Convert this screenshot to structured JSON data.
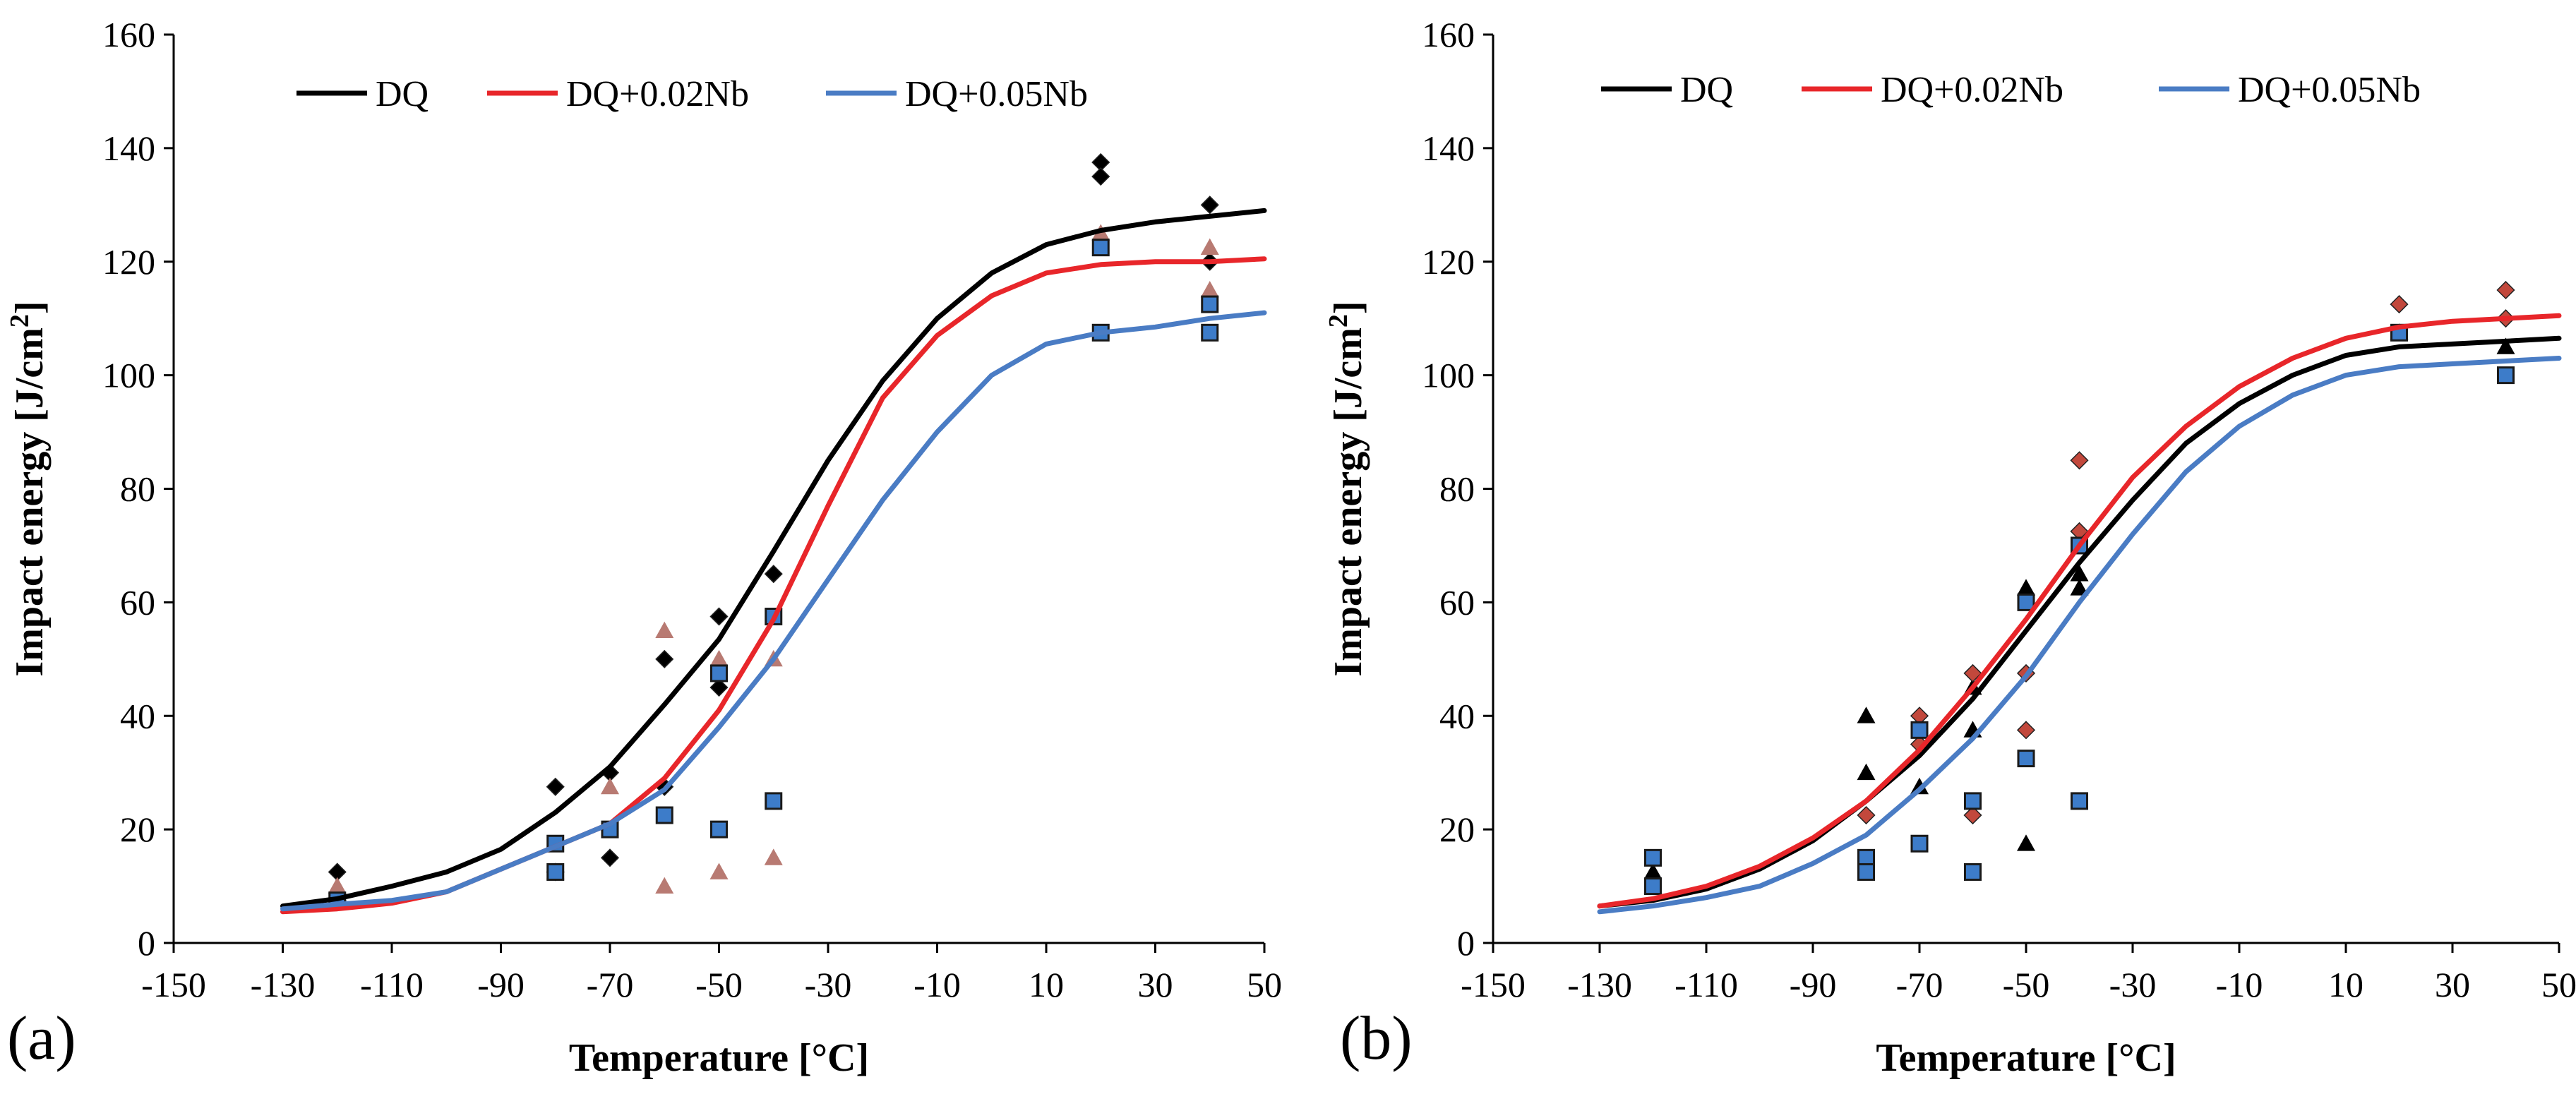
{
  "chart_data": [
    {
      "type": "line",
      "panel_label": "(a)",
      "xlabel": "Temperature [°C]",
      "ylabel_main": "Impact energy [J/cm",
      "ylabel_sup": "2",
      "ylabel_end": "]",
      "xlim": [
        -150,
        50
      ],
      "ylim": [
        0,
        160
      ],
      "xticks": [
        -150,
        -130,
        -110,
        -90,
        -70,
        -50,
        -30,
        -10,
        10,
        30,
        50
      ],
      "xtick_labels": [
        "-150",
        "-130",
        "-110",
        "-90",
        "-70",
        "-50",
        "-30",
        "-10",
        "10",
        "30",
        "50"
      ],
      "yticks": [
        0,
        20,
        40,
        60,
        80,
        100,
        120,
        140,
        160
      ],
      "ytick_labels": [
        "0",
        "20",
        "40",
        "60",
        "80",
        "100",
        "120",
        "140",
        "160"
      ],
      "grid": false,
      "legend_position": "top",
      "series": [
        {
          "name": "DQ",
          "color": "#000000",
          "marker": "diamond",
          "marker_color": "#000000",
          "curve": {
            "x": [
              -130,
              -120,
              -110,
              -100,
              -90,
              -80,
              -70,
              -60,
              -50,
              -40,
              -30,
              -20,
              -10,
              0,
              10,
              20,
              30,
              40,
              50
            ],
            "y": [
              6.5,
              7.8,
              10.0,
              12.5,
              16.5,
              23,
              31,
              42,
              53.5,
              69,
              85,
              99,
              110,
              118,
              123,
              125.5,
              127,
              128,
              129
            ]
          },
          "points": [
            {
              "x": -120,
              "y": 12.5
            },
            {
              "x": -120,
              "y": 7.5
            },
            {
              "x": -80,
              "y": 27.5
            },
            {
              "x": -80,
              "y": 12.5
            },
            {
              "x": -70,
              "y": 30
            },
            {
              "x": -70,
              "y": 15
            },
            {
              "x": -60,
              "y": 50
            },
            {
              "x": -60,
              "y": 27.5
            },
            {
              "x": -50,
              "y": 57.5
            },
            {
              "x": -50,
              "y": 45
            },
            {
              "x": -40,
              "y": 65
            },
            {
              "x": 20,
              "y": 137.5
            },
            {
              "x": 20,
              "y": 135
            },
            {
              "x": 40,
              "y": 130
            },
            {
              "x": 40,
              "y": 120
            }
          ]
        },
        {
          "name": "DQ+0.02Nb",
          "color": "#e8262a",
          "marker": "triangle",
          "marker_color": "#b87a72",
          "curve": {
            "x": [
              -130,
              -120,
              -110,
              -100,
              -90,
              -80,
              -70,
              -60,
              -50,
              -40,
              -30,
              -20,
              -10,
              0,
              10,
              20,
              30,
              40,
              50
            ],
            "y": [
              5.5,
              6.0,
              7.0,
              9.0,
              13,
              17,
              21,
              29,
              41,
              57,
              77,
              96,
              107,
              114,
              118,
              119.5,
              120,
              120,
              120.5
            ]
          },
          "points": [
            {
              "x": -120,
              "y": 10
            },
            {
              "x": -80,
              "y": 12.5
            },
            {
              "x": -70,
              "y": 27.5
            },
            {
              "x": -60,
              "y": 55
            },
            {
              "x": -60,
              "y": 10
            },
            {
              "x": -50,
              "y": 50
            },
            {
              "x": -50,
              "y": 12.5
            },
            {
              "x": -40,
              "y": 50
            },
            {
              "x": -40,
              "y": 15
            },
            {
              "x": 20,
              "y": 125
            },
            {
              "x": 40,
              "y": 122.5
            },
            {
              "x": 40,
              "y": 115
            }
          ]
        },
        {
          "name": "DQ+0.05Nb",
          "color": "#4a7cc4",
          "marker": "square",
          "marker_color": "#3d7cc9",
          "curve": {
            "x": [
              -130,
              -120,
              -110,
              -100,
              -90,
              -80,
              -70,
              -60,
              -50,
              -40,
              -30,
              -20,
              -10,
              0,
              10,
              20,
              30,
              40,
              50
            ],
            "y": [
              6.0,
              6.8,
              7.5,
              9.0,
              13,
              17,
              21,
              27,
              38,
              50,
              64,
              78,
              90,
              100,
              105.5,
              107.5,
              108.5,
              110,
              111
            ]
          },
          "points": [
            {
              "x": -120,
              "y": 7.5
            },
            {
              "x": -80,
              "y": 17.5
            },
            {
              "x": -80,
              "y": 12.5
            },
            {
              "x": -70,
              "y": 20
            },
            {
              "x": -60,
              "y": 22.5
            },
            {
              "x": -50,
              "y": 47.5
            },
            {
              "x": -50,
              "y": 20
            },
            {
              "x": -40,
              "y": 57.5
            },
            {
              "x": -40,
              "y": 25
            },
            {
              "x": 20,
              "y": 122.5
            },
            {
              "x": 20,
              "y": 107.5
            },
            {
              "x": 40,
              "y": 112.5
            },
            {
              "x": 40,
              "y": 107.5
            }
          ]
        }
      ]
    },
    {
      "type": "line",
      "panel_label": "(b)",
      "xlabel": "Temperature [°C]",
      "ylabel_main": "Impact energy [J/cm",
      "ylabel_sup": "2",
      "ylabel_end": "]",
      "xlim": [
        -150,
        50
      ],
      "ylim": [
        0,
        160
      ],
      "xticks": [
        -150,
        -130,
        -110,
        -90,
        -70,
        -50,
        -30,
        -10,
        10,
        30,
        50
      ],
      "xtick_labels": [
        "-150",
        "-130",
        "-110",
        "-90",
        "-70",
        "-50",
        "-30",
        "-10",
        "10",
        "30",
        "50"
      ],
      "yticks": [
        0,
        20,
        40,
        60,
        80,
        100,
        120,
        140,
        160
      ],
      "ytick_labels": [
        "0",
        "20",
        "40",
        "60",
        "80",
        "100",
        "120",
        "140",
        "160"
      ],
      "grid": false,
      "legend_position": "top",
      "series": [
        {
          "name": "DQ",
          "color": "#000000",
          "marker": "triangle",
          "marker_color": "#000000",
          "curve": {
            "x": [
              -130,
              -120,
              -110,
              -100,
              -90,
              -80,
              -70,
              -60,
              -50,
              -40,
              -30,
              -20,
              -10,
              0,
              10,
              20,
              30,
              40,
              50
            ],
            "y": [
              6.5,
              7.5,
              9.5,
              13,
              18,
              25,
              33,
              43,
              55,
              67,
              78,
              88,
              95,
              100,
              103.5,
              105,
              105.5,
              106,
              106.5
            ]
          },
          "points": [
            {
              "x": -120,
              "y": 12.5
            },
            {
              "x": -120,
              "y": 10
            },
            {
              "x": -80,
              "y": 40
            },
            {
              "x": -80,
              "y": 30
            },
            {
              "x": -70,
              "y": 27.5
            },
            {
              "x": -60,
              "y": 45
            },
            {
              "x": -60,
              "y": 37.5
            },
            {
              "x": -50,
              "y": 62.5
            },
            {
              "x": -50,
              "y": 17.5
            },
            {
              "x": -40,
              "y": 65
            },
            {
              "x": -40,
              "y": 62.5
            },
            {
              "x": 20,
              "y": 107.5
            },
            {
              "x": 40,
              "y": 105
            }
          ]
        },
        {
          "name": "DQ+0.02Nb",
          "color": "#e8262a",
          "marker": "diamond",
          "marker_color": "#c2483c",
          "curve": {
            "x": [
              -130,
              -120,
              -110,
              -100,
              -90,
              -80,
              -70,
              -60,
              -50,
              -40,
              -30,
              -20,
              -10,
              0,
              10,
              20,
              30,
              40,
              50
            ],
            "y": [
              6.5,
              7.8,
              10.0,
              13.5,
              18.5,
              25,
              34,
              45,
              57,
              70,
              82,
              91,
              98,
              103,
              106.5,
              108.5,
              109.5,
              110,
              110.5
            ]
          },
          "points": [
            {
              "x": -80,
              "y": 22.5
            },
            {
              "x": -70,
              "y": 40
            },
            {
              "x": -70,
              "y": 35
            },
            {
              "x": -60,
              "y": 47.5
            },
            {
              "x": -60,
              "y": 22.5
            },
            {
              "x": -50,
              "y": 47.5
            },
            {
              "x": -50,
              "y": 37.5
            },
            {
              "x": -40,
              "y": 85
            },
            {
              "x": -40,
              "y": 72.5
            },
            {
              "x": 20,
              "y": 112.5
            },
            {
              "x": 40,
              "y": 115
            },
            {
              "x": 40,
              "y": 110
            }
          ]
        },
        {
          "name": "DQ+0.05Nb",
          "color": "#4a7cc4",
          "marker": "square",
          "marker_color": "#3d7cc9",
          "curve": {
            "x": [
              -130,
              -120,
              -110,
              -100,
              -90,
              -80,
              -70,
              -60,
              -50,
              -40,
              -30,
              -20,
              -10,
              0,
              10,
              20,
              30,
              40,
              50
            ],
            "y": [
              5.5,
              6.5,
              8.0,
              10.0,
              14,
              19,
              27,
              36,
              47,
              60,
              72,
              83,
              91,
              96.5,
              100,
              101.5,
              102,
              102.5,
              103
            ]
          },
          "points": [
            {
              "x": -120,
              "y": 15
            },
            {
              "x": -120,
              "y": 10
            },
            {
              "x": -80,
              "y": 15
            },
            {
              "x": -80,
              "y": 12.5
            },
            {
              "x": -70,
              "y": 37.5
            },
            {
              "x": -70,
              "y": 17.5
            },
            {
              "x": -60,
              "y": 25
            },
            {
              "x": -60,
              "y": 12.5
            },
            {
              "x": -50,
              "y": 60
            },
            {
              "x": -50,
              "y": 32.5
            },
            {
              "x": -40,
              "y": 70
            },
            {
              "x": -40,
              "y": 25
            },
            {
              "x": 20,
              "y": 107.5
            },
            {
              "x": 40,
              "y": 100
            }
          ]
        }
      ]
    }
  ]
}
